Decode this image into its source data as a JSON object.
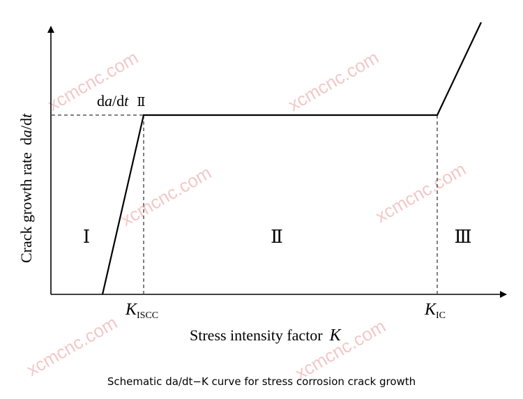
{
  "diagram": {
    "y_axis_label_plain": "Crack growth rate",
    "y_axis_label_d": "d",
    "y_axis_label_a": "a",
    "y_axis_label_slash": "/d",
    "y_axis_label_t": "t",
    "plateau_label_d": "d",
    "plateau_label_a": "a",
    "plateau_label_slash": "/d",
    "plateau_label_t": "t",
    "plateau_label_region": "Ⅱ",
    "region_1": "Ⅰ",
    "region_2": "Ⅱ",
    "region_3": "Ⅲ",
    "tick_k_iscc_main": "K",
    "tick_k_iscc_sub": "ISCC",
    "tick_k_ic_main": "K",
    "tick_k_ic_sub": "IC",
    "x_axis_label_plain": "Stress intensity factor",
    "x_axis_label_k": "K",
    "caption": "Schematic da/dt−K curve for stress corrosion crack growth",
    "watermark": "xcmcnc.com",
    "colors": {
      "line": "#000000",
      "watermark": "#f2c8c8"
    }
  }
}
